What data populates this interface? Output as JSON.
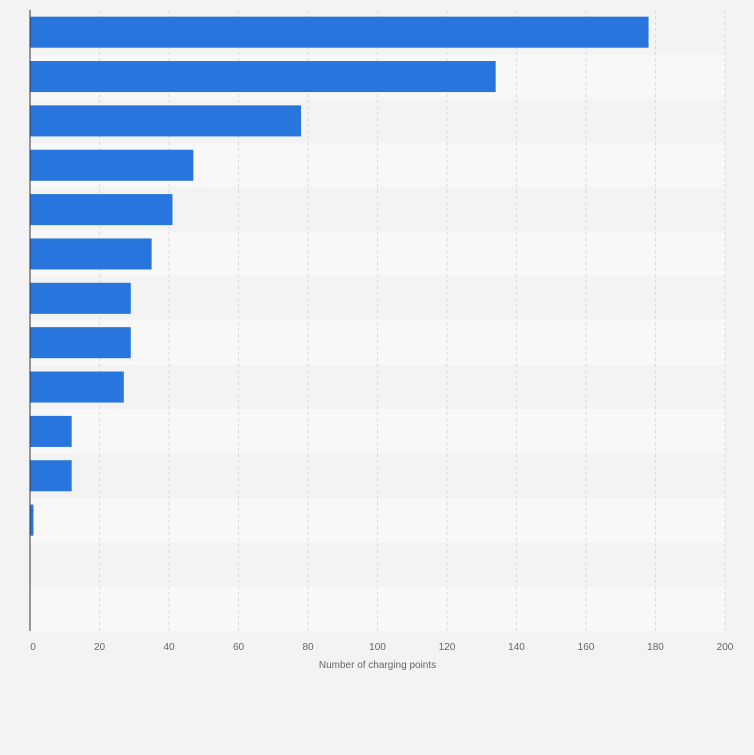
{
  "chart_data": {
    "type": "bar",
    "orientation": "horizontal",
    "categories": [
      "",
      "",
      "",
      "",
      "",
      "",
      "",
      "",
      "",
      "",
      "",
      "",
      "",
      ""
    ],
    "values": [
      178,
      134,
      78,
      47,
      41,
      35,
      29,
      29,
      27,
      12,
      12,
      1,
      0,
      0
    ],
    "title": "",
    "xlabel": "Number of charging points",
    "ylabel": "",
    "xlim": [
      0,
      200
    ],
    "xticks": [
      0,
      20,
      40,
      60,
      80,
      100,
      120,
      140,
      160,
      180,
      200
    ],
    "grid": true,
    "legend": "none",
    "colors": {
      "bar": "#2876dd",
      "band_a": "#f3f3f3",
      "band_b": "#f8f8f8",
      "grid": "#d9d9d9",
      "axis": "#333333",
      "text": "#666666",
      "background": "#f3f3f3"
    }
  }
}
